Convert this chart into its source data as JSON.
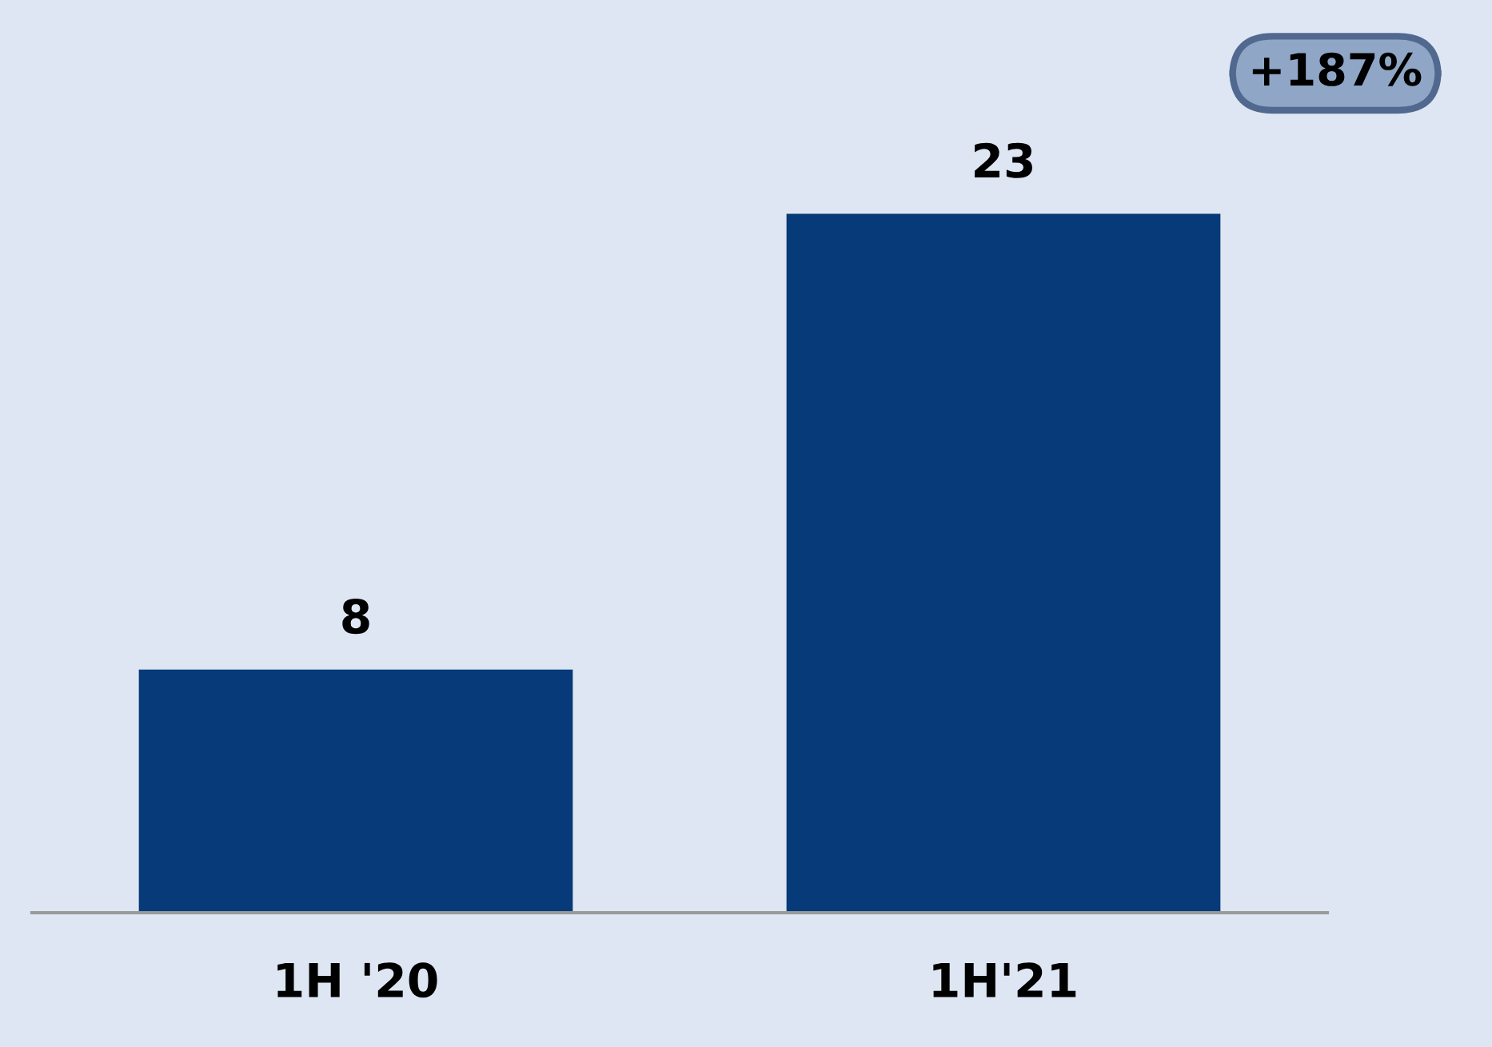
{
  "chart_data": {
    "type": "bar",
    "categories": [
      "1H '20",
      "1H'21"
    ],
    "values": [
      8,
      23
    ],
    "color": "#063a78",
    "data_labels": true,
    "annotations": [
      "+187%"
    ],
    "grid": false,
    "legend": false
  }
}
